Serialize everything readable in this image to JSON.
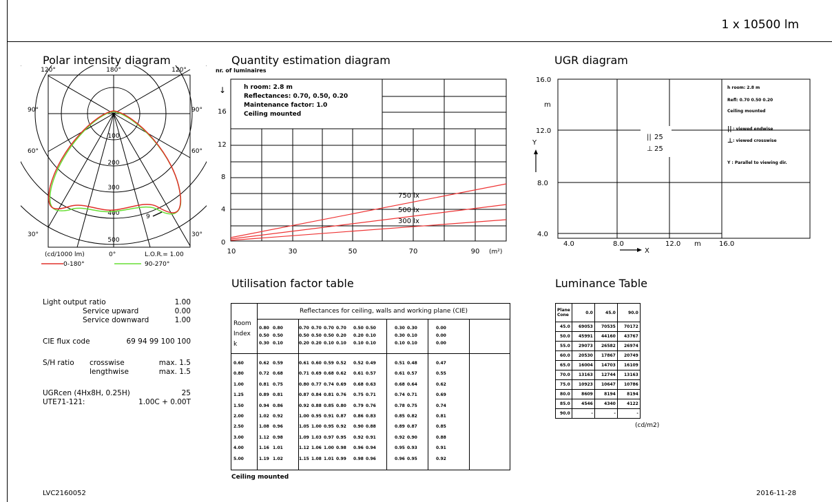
{
  "header": {
    "lumen": "1 x 10500 lm"
  },
  "polar": {
    "title": "Polar intensity diagram",
    "angles_top": [
      "120°",
      "180°",
      "120°"
    ],
    "angles_left": [
      "90°",
      "60°",
      "30°"
    ],
    "angles_right": [
      "90°",
      "60°",
      "30°"
    ],
    "rings": [
      "100",
      "200",
      "300",
      "400",
      "500"
    ],
    "marker": "9",
    "unit": "(cd/1000 lm)",
    "zero": "0°",
    "lor": "L.O.R.= 1.00",
    "legend": [
      {
        "label": "0-180°",
        "color": "#e0302a"
      },
      {
        "label": "90-270°",
        "color": "#66dd33"
      }
    ]
  },
  "quantity": {
    "title": "Quantity estimation diagram",
    "ylabel": "nr. of luminaires",
    "info": [
      "h room: 2.8 m",
      "Reflectances: 0.70, 0.50, 0.20",
      "Maintenance factor: 1.0",
      "Ceiling mounted"
    ],
    "y_ticks": [
      "16",
      "12",
      "8",
      "4",
      "0"
    ],
    "x_ticks": [
      "10",
      "30",
      "50",
      "70",
      "90"
    ],
    "x_unit": "(m²)",
    "lines": [
      "750 lx",
      "500 lx",
      "300 lx"
    ]
  },
  "ugr": {
    "title": "UGR diagram",
    "y_ticks": [
      "16.0",
      "12.0",
      "8.0",
      "4.0"
    ],
    "x_ticks": [
      "4.0",
      "8.0",
      "12.0",
      "16.0"
    ],
    "unit_m": "m",
    "y_axis": "Y",
    "x_axis": "X",
    "val1": "25",
    "val2": "25",
    "notes": [
      "h room: 2.8 m",
      "Refl: 0.70 0.50 0.20",
      "Ceiling mounted",
      ": viewed endwise",
      ": viewed crosswise",
      "Y : Parallel to viewing dir."
    ]
  },
  "specs": {
    "lor_label": "Light output ratio",
    "lor_val": "1.00",
    "up_label": "Service upward",
    "up_val": "0.00",
    "down_label": "Service downward",
    "down_val": "1.00",
    "cie_label": "CIE flux code",
    "cie_val": "69 94 99 100 100",
    "sh_label": "S/H ratio",
    "sh_cross": "crosswise",
    "sh_cross_val": "max. 1.5",
    "sh_length": "lengthwise",
    "sh_length_val": "max. 1.5",
    "ugr_label": "UGRcen (4Hx8H, 0.25H)",
    "ugr_val": "25",
    "ute_label": "UTE71-121:",
    "ute_val": "1.00C + 0.00T"
  },
  "uf": {
    "title": "Utilisation factor table",
    "header": "Reflectances for ceiling, walls and working plane (CIE)",
    "room_label": [
      "Room",
      "Index",
      "k"
    ],
    "refl_rows": [
      [
        "0.80",
        "0.80",
        "0.70",
        "0.70",
        "0.70",
        "0.70",
        "0.50",
        "0.50",
        "0.30",
        "0.30",
        "0.00"
      ],
      [
        "0.50",
        "0.50",
        "0.50",
        "0.50",
        "0.50",
        "0.20",
        "0.20",
        "0.10",
        "0.30",
        "0.10",
        "0.00"
      ],
      [
        "0.30",
        "0.10",
        "0.20",
        "0.20",
        "0.10",
        "0.10",
        "0.10",
        "0.10",
        "0.10",
        "0.10",
        "0.00"
      ]
    ],
    "rows": [
      [
        "0.60",
        "0.62",
        "0.59",
        "0.61",
        "0.60",
        "0.59",
        "0.52",
        "0.52",
        "0.49",
        "0.51",
        "0.48",
        "0.47"
      ],
      [
        "0.80",
        "0.72",
        "0.68",
        "0.71",
        "0.69",
        "0.68",
        "0.62",
        "0.61",
        "0.57",
        "0.61",
        "0.57",
        "0.55"
      ],
      [
        "1.00",
        "0.81",
        "0.75",
        "0.80",
        "0.77",
        "0.74",
        "0.69",
        "0.68",
        "0.63",
        "0.68",
        "0.64",
        "0.62"
      ],
      [
        "1.25",
        "0.89",
        "0.81",
        "0.87",
        "0.84",
        "0.81",
        "0.76",
        "0.75",
        "0.71",
        "0.74",
        "0.71",
        "0.69"
      ],
      [
        "1.50",
        "0.94",
        "0.86",
        "0.92",
        "0.88",
        "0.85",
        "0.80",
        "0.79",
        "0.76",
        "0.78",
        "0.75",
        "0.74"
      ],
      [
        "2.00",
        "1.02",
        "0.92",
        "1.00",
        "0.95",
        "0.91",
        "0.87",
        "0.86",
        "0.83",
        "0.85",
        "0.82",
        "0.81"
      ],
      [
        "2.50",
        "1.08",
        "0.96",
        "1.05",
        "1.00",
        "0.95",
        "0.92",
        "0.90",
        "0.88",
        "0.89",
        "0.87",
        "0.85"
      ],
      [
        "3.00",
        "1.12",
        "0.98",
        "1.09",
        "1.03",
        "0.97",
        "0.95",
        "0.92",
        "0.91",
        "0.92",
        "0.90",
        "0.88"
      ],
      [
        "4.00",
        "1.16",
        "1.01",
        "1.12",
        "1.06",
        "1.00",
        "0.98",
        "0.96",
        "0.94",
        "0.95",
        "0.93",
        "0.91"
      ],
      [
        "5.00",
        "1.19",
        "1.02",
        "1.15",
        "1.08",
        "1.01",
        "0.99",
        "0.98",
        "0.96",
        "0.96",
        "0.95",
        "0.92"
      ]
    ],
    "footer": "Ceiling mounted"
  },
  "lum": {
    "title": "Luminance Table",
    "corner": [
      "Plane",
      "Cone"
    ],
    "cols": [
      "0.0",
      "45.0",
      "90.0"
    ],
    "rows": [
      [
        "45.0",
        "69053",
        "70535",
        "70172"
      ],
      [
        "50.0",
        "45991",
        "44160",
        "43767"
      ],
      [
        "55.0",
        "29073",
        "26582",
        "26974"
      ],
      [
        "60.0",
        "20530",
        "17867",
        "20749"
      ],
      [
        "65.0",
        "16004",
        "14703",
        "16109"
      ],
      [
        "70.0",
        "13163",
        "12744",
        "13163"
      ],
      [
        "75.0",
        "10923",
        "10647",
        "10786"
      ],
      [
        "80.0",
        "8609",
        "8194",
        "8194"
      ],
      [
        "85.0",
        "4546",
        "4340",
        "4122"
      ],
      [
        "90.0",
        "-",
        "-",
        "-"
      ]
    ],
    "unit": "(cd/m2)"
  },
  "footer": {
    "code": "LVC2160052",
    "date": "2016-11-28"
  }
}
